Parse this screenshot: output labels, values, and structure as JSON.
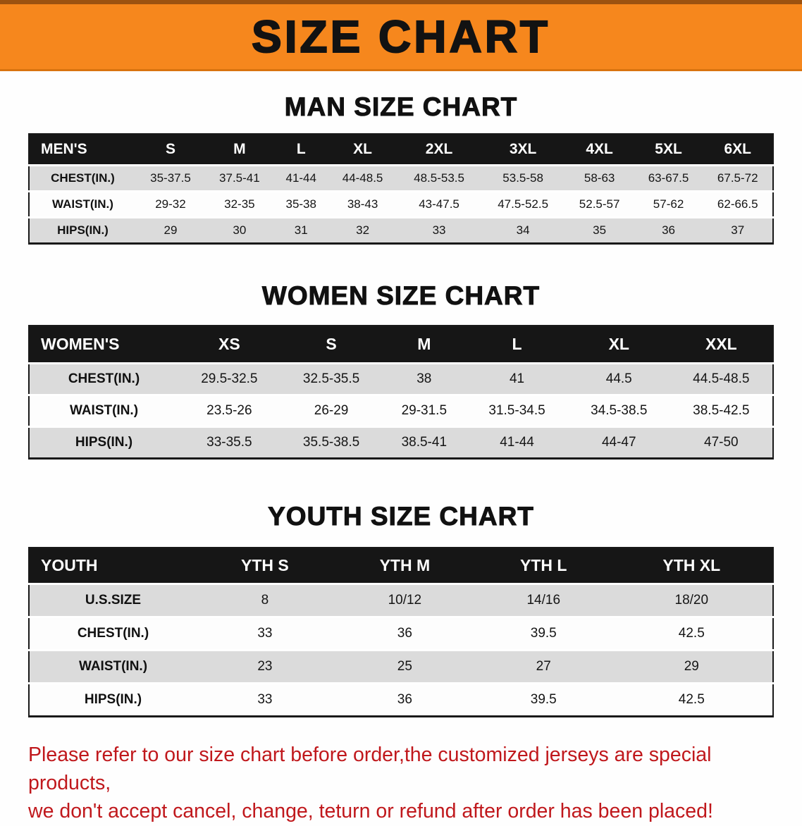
{
  "banner": {
    "title": "SIZE CHART"
  },
  "sections": [
    {
      "id": "men",
      "heading": "MAN SIZE CHART",
      "table": {
        "header": [
          "MEN'S",
          "S",
          "M",
          "L",
          "XL",
          "2XL",
          "3XL",
          "4XL",
          "5XL",
          "6XL"
        ],
        "rows": [
          {
            "label": "CHEST(IN.)",
            "values": [
              "35-37.5",
              "37.5-41",
              "41-44",
              "44-48.5",
              "48.5-53.5",
              "53.5-58",
              "58-63",
              "63-67.5",
              "67.5-72"
            ]
          },
          {
            "label": "WAIST(IN.)",
            "values": [
              "29-32",
              "32-35",
              "35-38",
              "38-43",
              "43-47.5",
              "47.5-52.5",
              "52.5-57",
              "57-62",
              "62-66.5"
            ]
          },
          {
            "label": "HIPS(IN.)",
            "values": [
              "29",
              "30",
              "31",
              "32",
              "33",
              "34",
              "35",
              "36",
              "37"
            ]
          }
        ]
      }
    },
    {
      "id": "women",
      "heading": "WOMEN SIZE CHART",
      "table": {
        "header": [
          "WOMEN'S",
          "XS",
          "S",
          "M",
          "L",
          "XL",
          "XXL"
        ],
        "rows": [
          {
            "label": "CHEST(IN.)",
            "values": [
              "29.5-32.5",
              "32.5-35.5",
              "38",
              "41",
              "44.5",
              "44.5-48.5"
            ]
          },
          {
            "label": "WAIST(IN.)",
            "values": [
              "23.5-26",
              "26-29",
              "29-31.5",
              "31.5-34.5",
              "34.5-38.5",
              "38.5-42.5"
            ]
          },
          {
            "label": "HIPS(IN.)",
            "values": [
              "33-35.5",
              "35.5-38.5",
              "38.5-41",
              "41-44",
              "44-47",
              "47-50"
            ]
          }
        ]
      }
    },
    {
      "id": "youth",
      "heading": "YOUTH SIZE CHART",
      "table": {
        "header": [
          "YOUTH",
          "YTH S",
          "YTH M",
          "YTH L",
          "YTH XL"
        ],
        "rows": [
          {
            "label": "U.S.SIZE",
            "values": [
              "8",
              "10/12",
              "14/16",
              "18/20"
            ]
          },
          {
            "label": "CHEST(IN.)",
            "values": [
              "33",
              "36",
              "39.5",
              "42.5"
            ]
          },
          {
            "label": "WAIST(IN.)",
            "values": [
              "23",
              "25",
              "27",
              "29"
            ]
          },
          {
            "label": "HIPS(IN.)",
            "values": [
              "33",
              "36",
              "39.5",
              "42.5"
            ]
          }
        ]
      }
    }
  ],
  "footer": {
    "line1": "Please refer to our size chart before order,the customized jerseys are special products,",
    "line2": "we don't accept cancel, change, teturn or refund after order has been placed!"
  },
  "colors": {
    "banner_bg": "#f6871d",
    "table_header_bg": "#161616",
    "row_shade": "#dbdbdb",
    "note_red": "#c0181c"
  }
}
